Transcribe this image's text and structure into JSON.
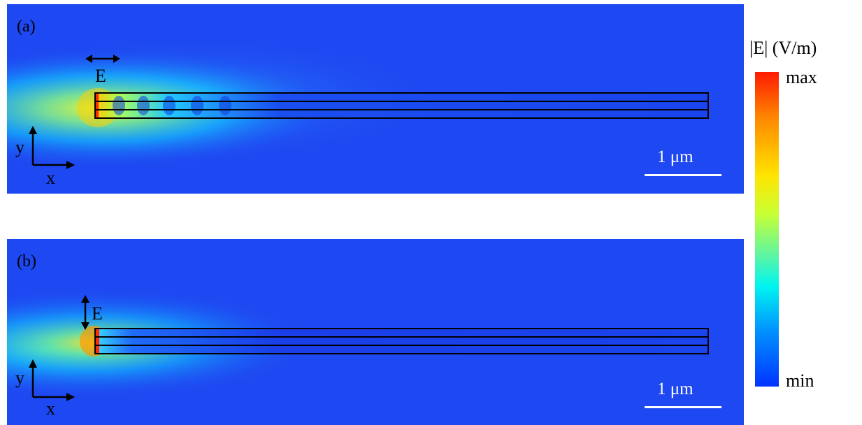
{
  "panels": [
    {
      "id": "(a)",
      "polarization": "E",
      "polarization_axis": "x",
      "axis_y": "y",
      "axis_x": "x",
      "scale_bar": "1 μm"
    },
    {
      "id": "(b)",
      "polarization": "E",
      "polarization_axis": "y",
      "axis_y": "y",
      "axis_x": "x",
      "scale_bar": "1 μm"
    }
  ],
  "colorbar": {
    "title": "|E| (V/m)",
    "max_label": "max",
    "min_label": "min",
    "colormap": "jet"
  },
  "colors": {
    "background_field": "#1e48f2",
    "hotspot": "#ff2a00",
    "outline": "#000000"
  }
}
